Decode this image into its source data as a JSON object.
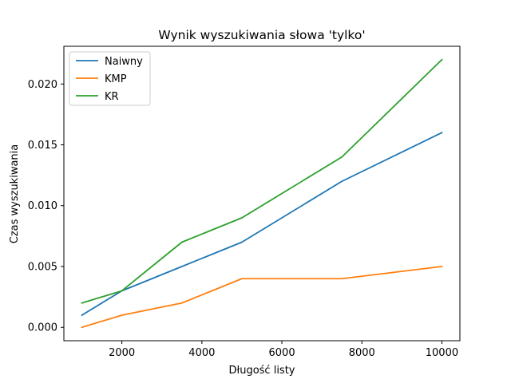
{
  "chart_data": {
    "type": "line",
    "title": "Wynik wyszukiwania słowa 'tylko'",
    "xlabel": "Długość listy",
    "ylabel": "Czas wyszukiwania",
    "x": [
      1000,
      2000,
      3500,
      5000,
      7500,
      10000
    ],
    "xlim": [
      550,
      10450
    ],
    "ylim": [
      -0.0011,
      0.0231
    ],
    "xticks": [
      2000,
      4000,
      6000,
      8000,
      10000
    ],
    "xtick_labels": [
      "2000",
      "4000",
      "6000",
      "8000",
      "10000"
    ],
    "yticks": [
      0.0,
      0.005,
      0.01,
      0.015,
      0.02
    ],
    "ytick_labels": [
      "0.000",
      "0.005",
      "0.010",
      "0.015",
      "0.020"
    ],
    "grid": false,
    "legend_position": "top-left",
    "series": [
      {
        "name": "Naiwny",
        "color": "#1f77b4",
        "values": [
          0.001,
          0.003,
          0.005,
          0.007,
          0.012,
          0.016
        ]
      },
      {
        "name": "KMP",
        "color": "#ff7f0e",
        "values": [
          0.0,
          0.001,
          0.002,
          0.004,
          0.004,
          0.005
        ]
      },
      {
        "name": "KR",
        "color": "#2ca02c",
        "values": [
          0.002,
          0.003,
          0.007,
          0.009,
          0.014,
          0.022
        ]
      }
    ]
  }
}
